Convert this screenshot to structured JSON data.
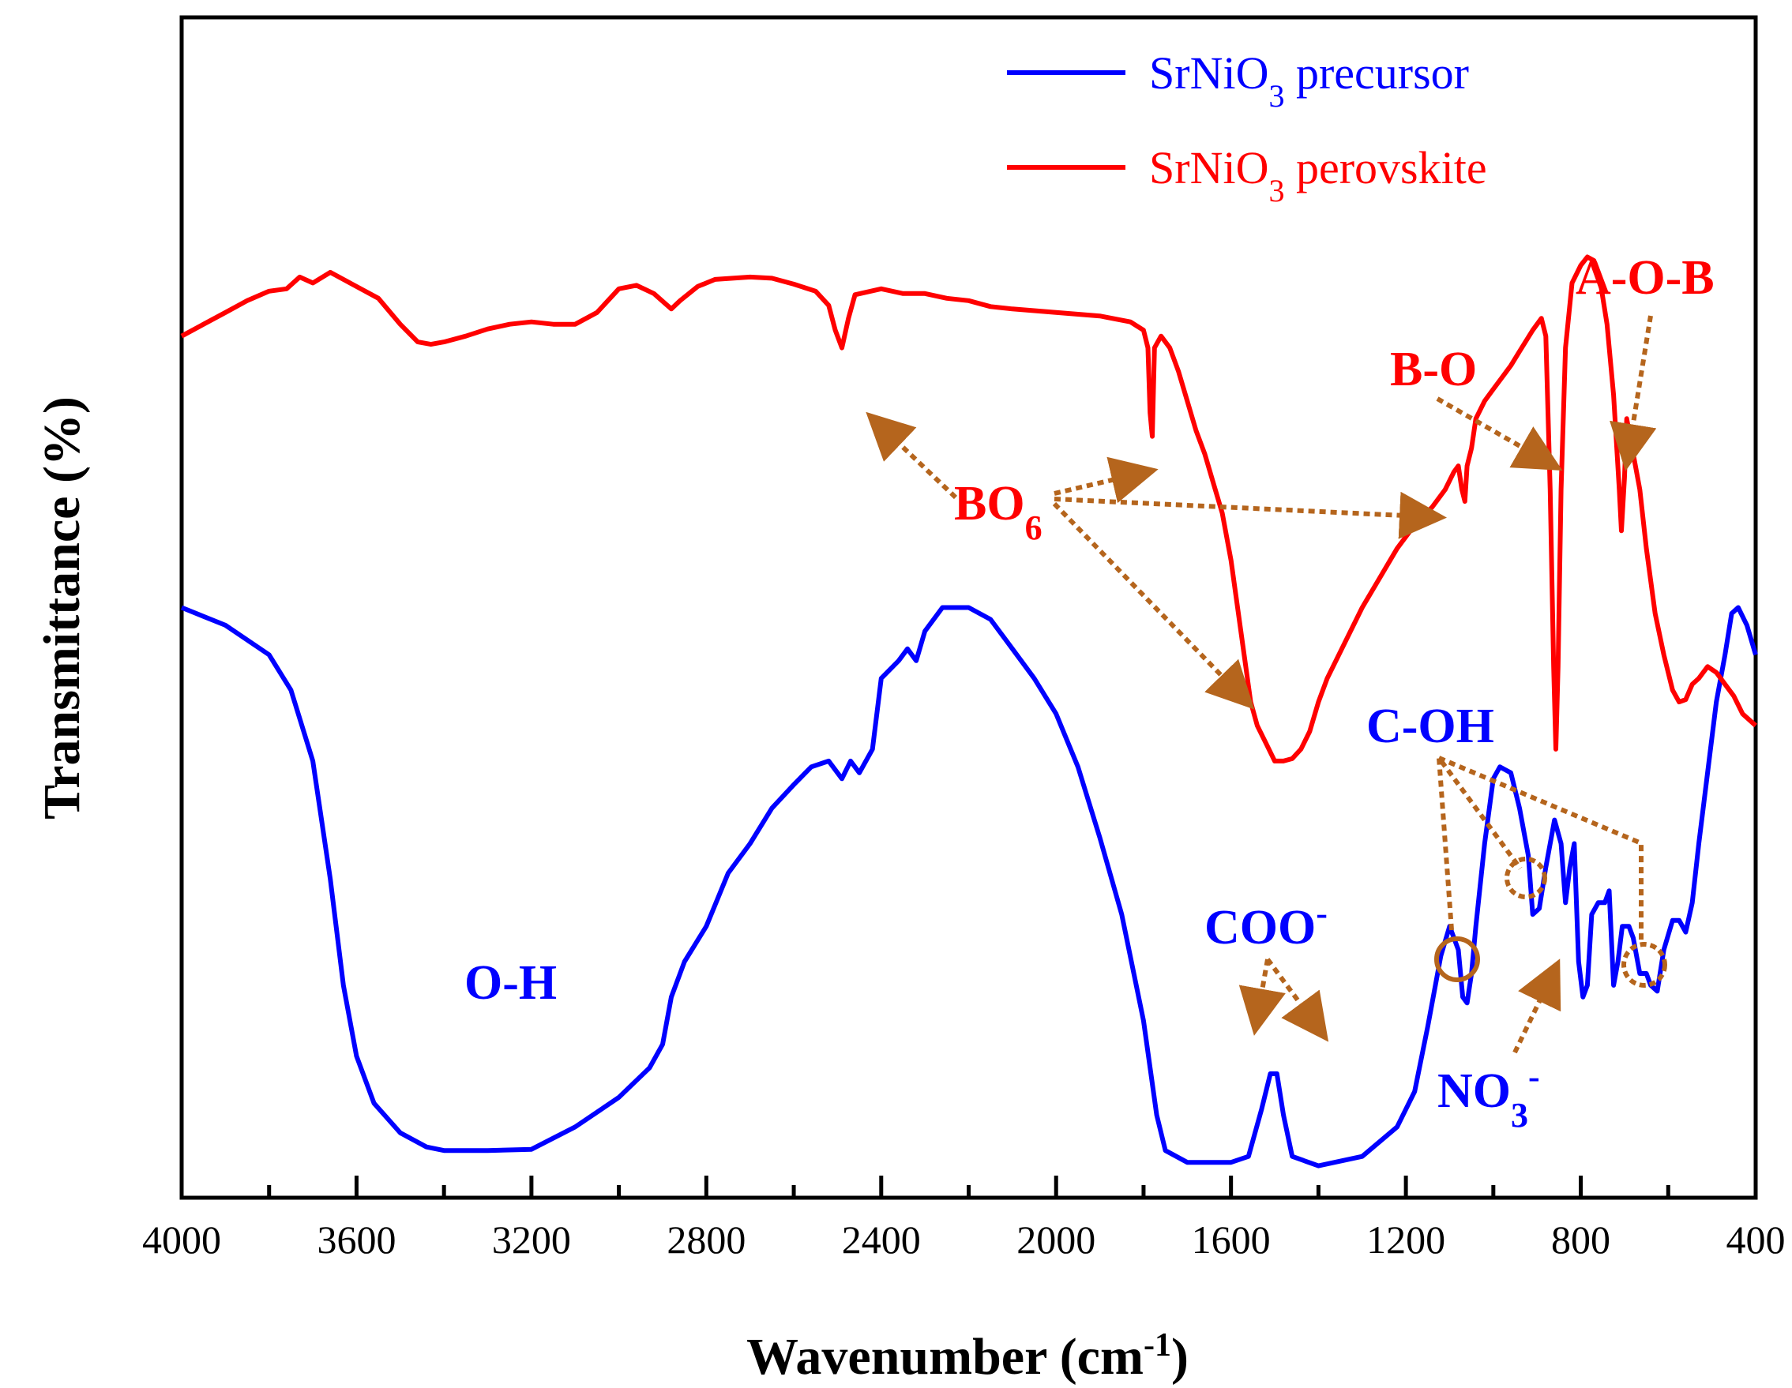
{
  "chart_data": {
    "type": "line",
    "title": "",
    "xlabel": "Wavenumber (cm-1)",
    "xlabel_main": "Wavenumber (cm",
    "xlabel_sup": "-1",
    "xlabel_close": ")",
    "ylabel": "Transmittance (%)",
    "xlim": [
      4000,
      400
    ],
    "x_reversed": true,
    "ylim": [
      0,
      100
    ],
    "y_ticks_shown": false,
    "x_ticks": [
      4000,
      3600,
      3200,
      2800,
      2400,
      2000,
      1600,
      1200,
      800,
      400
    ],
    "x_tick_labels": [
      "4000",
      "3600",
      "3200",
      "2800",
      "2400",
      "2000",
      "1600",
      "1200",
      "800",
      "400"
    ],
    "grid": false,
    "legend_position": "top-right",
    "series": [
      {
        "name": "SrNiO3 precursor",
        "legend_main": "SrNiO",
        "legend_sub": "3",
        "legend_rest": " precursor",
        "color": "#0000ff",
        "points": [
          [
            4000,
            50
          ],
          [
            3900,
            48.5
          ],
          [
            3800,
            46
          ],
          [
            3750,
            43
          ],
          [
            3700,
            37
          ],
          [
            3660,
            27
          ],
          [
            3630,
            18
          ],
          [
            3600,
            12
          ],
          [
            3560,
            8
          ],
          [
            3500,
            5.5
          ],
          [
            3440,
            4.3
          ],
          [
            3400,
            4
          ],
          [
            3300,
            4
          ],
          [
            3200,
            4.1
          ],
          [
            3100,
            6
          ],
          [
            3000,
            8.5
          ],
          [
            2930,
            11
          ],
          [
            2900,
            13
          ],
          [
            2880,
            17
          ],
          [
            2850,
            20
          ],
          [
            2800,
            23
          ],
          [
            2750,
            27.5
          ],
          [
            2700,
            30
          ],
          [
            2650,
            33
          ],
          [
            2600,
            35
          ],
          [
            2560,
            36.5
          ],
          [
            2520,
            37
          ],
          [
            2490,
            35.5
          ],
          [
            2470,
            37
          ],
          [
            2450,
            36
          ],
          [
            2420,
            38
          ],
          [
            2400,
            44
          ],
          [
            2360,
            45.5
          ],
          [
            2340,
            46.5
          ],
          [
            2320,
            45.5
          ],
          [
            2300,
            48
          ],
          [
            2260,
            50
          ],
          [
            2200,
            50
          ],
          [
            2150,
            49
          ],
          [
            2100,
            46.5
          ],
          [
            2050,
            44
          ],
          [
            2000,
            41
          ],
          [
            1950,
            36.5
          ],
          [
            1900,
            30.5
          ],
          [
            1850,
            24
          ],
          [
            1800,
            15
          ],
          [
            1770,
            7
          ],
          [
            1750,
            4
          ],
          [
            1700,
            3
          ],
          [
            1600,
            3
          ],
          [
            1560,
            3.5
          ],
          [
            1530,
            7.5
          ],
          [
            1510,
            10.5
          ],
          [
            1495,
            10.5
          ],
          [
            1480,
            7
          ],
          [
            1460,
            3.5
          ],
          [
            1400,
            2.7
          ],
          [
            1300,
            3.5
          ],
          [
            1220,
            6
          ],
          [
            1180,
            9
          ],
          [
            1150,
            14.5
          ],
          [
            1120,
            20.5
          ],
          [
            1100,
            23
          ],
          [
            1080,
            21
          ],
          [
            1070,
            17
          ],
          [
            1060,
            16.5
          ],
          [
            1050,
            19
          ],
          [
            1040,
            23
          ],
          [
            1020,
            30
          ],
          [
            1000,
            35.5
          ],
          [
            985,
            36.5
          ],
          [
            960,
            36
          ],
          [
            940,
            33
          ],
          [
            920,
            29
          ],
          [
            910,
            24
          ],
          [
            895,
            24.5
          ],
          [
            880,
            28
          ],
          [
            860,
            32
          ],
          [
            845,
            30
          ],
          [
            835,
            25
          ],
          [
            825,
            28
          ],
          [
            815,
            30
          ],
          [
            805,
            20
          ],
          [
            795,
            17
          ],
          [
            785,
            18
          ],
          [
            775,
            24
          ],
          [
            760,
            25
          ],
          [
            745,
            25
          ],
          [
            735,
            26
          ],
          [
            725,
            18
          ],
          [
            715,
            20
          ],
          [
            705,
            23
          ],
          [
            690,
            23
          ],
          [
            680,
            22
          ],
          [
            665,
            19
          ],
          [
            650,
            19
          ],
          [
            640,
            18
          ],
          [
            625,
            17.5
          ],
          [
            610,
            21
          ],
          [
            590,
            23.5
          ],
          [
            575,
            23.5
          ],
          [
            560,
            22.5
          ],
          [
            545,
            25
          ],
          [
            530,
            30
          ],
          [
            510,
            36
          ],
          [
            490,
            42
          ],
          [
            470,
            46
          ],
          [
            455,
            49.5
          ],
          [
            440,
            50
          ],
          [
            420,
            48.5
          ],
          [
            400,
            46
          ]
        ]
      },
      {
        "name": "SrNiO3 perovskite",
        "legend_main": "SrNiO",
        "legend_sub": "3",
        "legend_rest": " perovskite",
        "color": "#ff0000",
        "points": [
          [
            4000,
            73
          ],
          [
            3950,
            74
          ],
          [
            3900,
            75
          ],
          [
            3850,
            76
          ],
          [
            3800,
            76.8
          ],
          [
            3760,
            77
          ],
          [
            3730,
            78
          ],
          [
            3700,
            77.5
          ],
          [
            3660,
            78.4
          ],
          [
            3600,
            77.2
          ],
          [
            3550,
            76.2
          ],
          [
            3500,
            74
          ],
          [
            3460,
            72.5
          ],
          [
            3430,
            72.3
          ],
          [
            3400,
            72.5
          ],
          [
            3350,
            73
          ],
          [
            3300,
            73.6
          ],
          [
            3250,
            74
          ],
          [
            3200,
            74.2
          ],
          [
            3150,
            74
          ],
          [
            3100,
            74
          ],
          [
            3050,
            75
          ],
          [
            3000,
            77
          ],
          [
            2960,
            77.3
          ],
          [
            2920,
            76.6
          ],
          [
            2880,
            75.3
          ],
          [
            2860,
            76
          ],
          [
            2820,
            77.2
          ],
          [
            2780,
            77.8
          ],
          [
            2740,
            77.9
          ],
          [
            2700,
            78
          ],
          [
            2650,
            77.9
          ],
          [
            2600,
            77.4
          ],
          [
            2550,
            76.8
          ],
          [
            2520,
            75.6
          ],
          [
            2505,
            73.5
          ],
          [
            2490,
            72
          ],
          [
            2475,
            74.5
          ],
          [
            2460,
            76.5
          ],
          [
            2400,
            77
          ],
          [
            2350,
            76.6
          ],
          [
            2300,
            76.6
          ],
          [
            2250,
            76.2
          ],
          [
            2200,
            76
          ],
          [
            2150,
            75.5
          ],
          [
            2100,
            75.3
          ],
          [
            2000,
            75
          ],
          [
            1900,
            74.7
          ],
          [
            1830,
            74.2
          ],
          [
            1800,
            73.5
          ],
          [
            1790,
            72
          ],
          [
            1785,
            66.5
          ],
          [
            1780,
            64.5
          ],
          [
            1775,
            72
          ],
          [
            1760,
            73
          ],
          [
            1740,
            72
          ],
          [
            1720,
            70
          ],
          [
            1700,
            67.5
          ],
          [
            1680,
            65
          ],
          [
            1660,
            63
          ],
          [
            1640,
            60.5
          ],
          [
            1620,
            58
          ],
          [
            1600,
            54
          ],
          [
            1585,
            50
          ],
          [
            1570,
            46
          ],
          [
            1555,
            42
          ],
          [
            1540,
            40
          ],
          [
            1520,
            38.5
          ],
          [
            1500,
            37
          ],
          [
            1480,
            37
          ],
          [
            1460,
            37.2
          ],
          [
            1440,
            38
          ],
          [
            1420,
            39.5
          ],
          [
            1400,
            42
          ],
          [
            1380,
            44
          ],
          [
            1340,
            47
          ],
          [
            1300,
            50
          ],
          [
            1260,
            52.5
          ],
          [
            1220,
            55
          ],
          [
            1180,
            57
          ],
          [
            1140,
            58.5
          ],
          [
            1110,
            60
          ],
          [
            1090,
            61.5
          ],
          [
            1080,
            62
          ],
          [
            1072,
            60
          ],
          [
            1065,
            59
          ],
          [
            1060,
            62
          ],
          [
            1050,
            63.5
          ],
          [
            1040,
            66
          ],
          [
            1020,
            67.5
          ],
          [
            1000,
            68.5
          ],
          [
            980,
            69.5
          ],
          [
            960,
            70.5
          ],
          [
            940,
            71.7
          ],
          [
            910,
            73.5
          ],
          [
            890,
            74.5
          ],
          [
            880,
            73
          ],
          [
            870,
            60
          ],
          [
            862,
            45
          ],
          [
            857,
            38
          ],
          [
            852,
            45
          ],
          [
            845,
            60
          ],
          [
            835,
            72
          ],
          [
            820,
            77.5
          ],
          [
            800,
            79
          ],
          [
            785,
            79.7
          ],
          [
            770,
            79.4
          ],
          [
            755,
            77.5
          ],
          [
            740,
            74
          ],
          [
            725,
            68
          ],
          [
            712,
            60
          ],
          [
            707,
            56.5
          ],
          [
            700,
            61
          ],
          [
            695,
            66
          ],
          [
            690,
            65
          ],
          [
            680,
            63
          ],
          [
            665,
            60
          ],
          [
            650,
            55
          ],
          [
            630,
            49.5
          ],
          [
            610,
            46
          ],
          [
            590,
            43
          ],
          [
            575,
            42
          ],
          [
            560,
            42.2
          ],
          [
            545,
            43.5
          ],
          [
            530,
            44
          ],
          [
            510,
            45
          ],
          [
            490,
            44.5
          ],
          [
            470,
            43.5
          ],
          [
            450,
            42.5
          ],
          [
            430,
            41
          ],
          [
            400,
            40
          ]
        ]
      }
    ],
    "annotations": [
      {
        "id": "bo6",
        "text": "BO6",
        "main": "BO",
        "sub": "6",
        "color": "#ff0000"
      },
      {
        "id": "b-o",
        "text": "B-O",
        "color": "#ff0000"
      },
      {
        "id": "a-o-b",
        "text": "A-O-B",
        "color": "#ff0000"
      },
      {
        "id": "c-oh",
        "text": "C-OH",
        "color": "#0000ff"
      },
      {
        "id": "coo",
        "text": "COO-",
        "main": "COO",
        "sup": "-",
        "color": "#0000ff"
      },
      {
        "id": "oh",
        "text": "O-H",
        "color": "#0000ff"
      },
      {
        "id": "no3",
        "text": "NO3-",
        "main": "NO",
        "sub": "3",
        "sup": "-",
        "color": "#0000ff"
      }
    ],
    "annotation_arrow_color": "#b5651d"
  }
}
